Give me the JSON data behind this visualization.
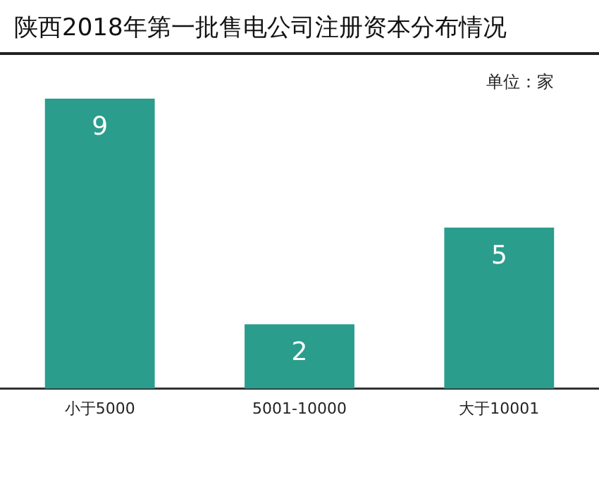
{
  "chart_data": {
    "type": "bar",
    "title": "陕西2018年第一批售电公司注册资本分布情况",
    "annotations": [
      "单位：家"
    ],
    "categories": [
      "小于5000",
      "5001-10000",
      "大于10001"
    ],
    "values": [
      9,
      2,
      5
    ],
    "color": "#2a9d8c",
    "data_labels": true,
    "grid": false,
    "legend": false,
    "tick_labels": "x"
  }
}
